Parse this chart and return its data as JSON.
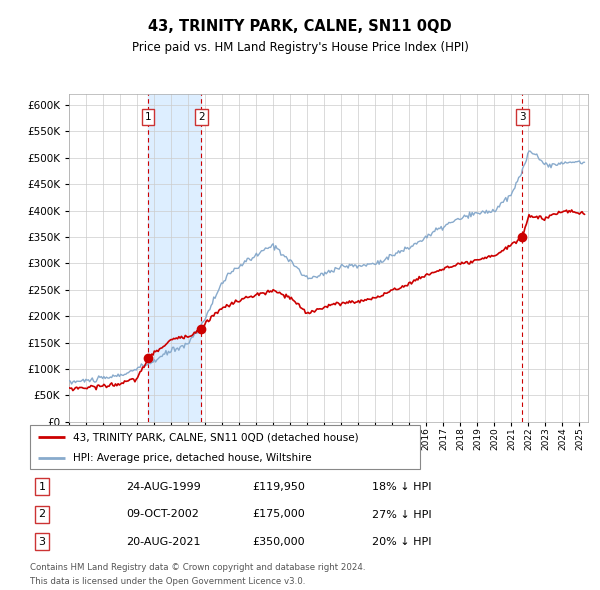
{
  "title": "43, TRINITY PARK, CALNE, SN11 0QD",
  "subtitle": "Price paid vs. HM Land Registry's House Price Index (HPI)",
  "legend_line1": "43, TRINITY PARK, CALNE, SN11 0QD (detached house)",
  "legend_line2": "HPI: Average price, detached house, Wiltshire",
  "transactions": [
    {
      "num": 1,
      "date": "24-AUG-1999",
      "year": 1999.65,
      "price": 119950,
      "pct": "18% ↓ HPI"
    },
    {
      "num": 2,
      "date": "09-OCT-2002",
      "year": 2002.78,
      "price": 175000,
      "pct": "27% ↓ HPI"
    },
    {
      "num": 3,
      "date": "20-AUG-2021",
      "year": 2021.65,
      "price": 350000,
      "pct": "20% ↓ HPI"
    }
  ],
  "footer_line1": "Contains HM Land Registry data © Crown copyright and database right 2024.",
  "footer_line2": "This data is licensed under the Open Government Licence v3.0.",
  "ylim": [
    0,
    620000
  ],
  "yticks": [
    0,
    50000,
    100000,
    150000,
    200000,
    250000,
    300000,
    350000,
    400000,
    450000,
    500000,
    550000,
    600000
  ],
  "xlim_start": 1995.0,
  "xlim_end": 2025.5,
  "red_color": "#cc0000",
  "blue_color": "#88aacc",
  "shade_color": "#ddeeff",
  "grid_color": "#cccccc",
  "vline_color": "#cc0000",
  "box_color": "#cc3333",
  "bg_color": "#ffffff"
}
